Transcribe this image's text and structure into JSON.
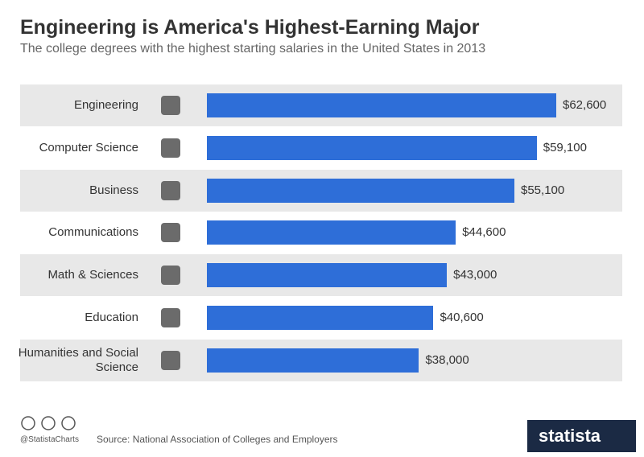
{
  "chart_data": {
    "type": "bar",
    "orientation": "horizontal",
    "title": "Engineering is America's Highest-Earning Major",
    "subtitle": "The college degrees with the highest starting salaries in the United States in 2013",
    "categories": [
      "Engineering",
      "Computer Science",
      "Business",
      "Communications",
      "Math & Sciences",
      "Education",
      "Humanities and Social Science"
    ],
    "values": [
      62600,
      59100,
      55100,
      44600,
      43000,
      40600,
      38000
    ],
    "value_labels": [
      "$62,600",
      "$59,100",
      "$55,100",
      "$44,600",
      "$43,000",
      "$40,600",
      "$38,000"
    ],
    "color": "#2e6ed8",
    "source": "Source: National Association of Colleges and Employers",
    "handle": "@StatistaCharts",
    "brand": "statista"
  }
}
